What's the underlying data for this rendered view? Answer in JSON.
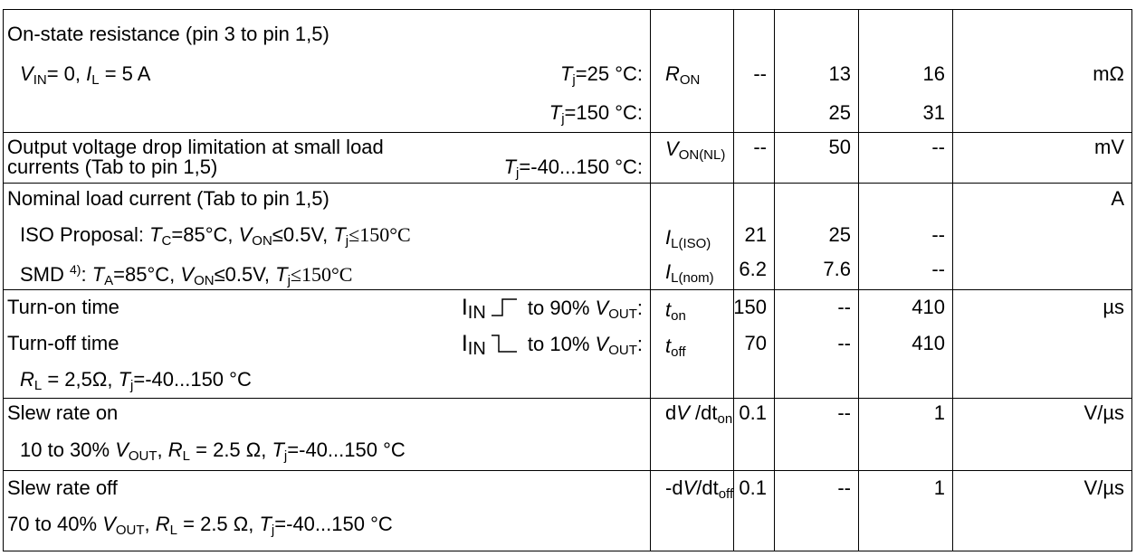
{
  "rows": [
    {
      "parameter": [
        "On-state resistance (pin 3 to pin 1,5)"
      ],
      "condition": [
        "V",
        "IN",
        "= 0, ",
        "I",
        "L",
        " = 5 A"
      ],
      "temperatures": [
        [
          "T",
          "j",
          "=25 °C:"
        ],
        [
          "T",
          "j",
          "=150 °C:"
        ]
      ],
      "symbol": [
        "R",
        "ON"
      ],
      "min": "--",
      "typ": [
        13,
        25
      ],
      "max": [
        16,
        31
      ],
      "unit": "mΩ"
    },
    {
      "parameter": [
        "Output voltage drop limitation at small load",
        "currents (Tab to pin 1,5)"
      ],
      "temperatures": [
        [
          "T",
          "j",
          "=-40...150 °C:"
        ]
      ],
      "symbol": [
        "V",
        "ON(NL)"
      ],
      "min": "--",
      "typ": 50,
      "max": "--",
      "unit": "mV"
    },
    {
      "parameter": [
        "Nominal load current  (Tab to pin 1,5)"
      ],
      "conditions": [
        [
          "ISO Proposal: ",
          "T",
          "C",
          "=85°C, ",
          "V",
          "ON",
          "≤0.5V, ",
          "T",
          "j",
          "≤150°C"
        ],
        [
          "SMD ",
          "4)",
          ": ",
          "T",
          "A",
          "=85°C, ",
          "V",
          "ON",
          "≤0.5V, ",
          "T",
          "j",
          "≤150°C"
        ]
      ],
      "symbols": [
        [
          "I",
          "L(ISO)"
        ],
        [
          "I",
          "L(nom)"
        ]
      ],
      "min": [
        21,
        6.2
      ],
      "typ": [
        25,
        7.6
      ],
      "max": [
        "--",
        "--"
      ],
      "unit": "A"
    },
    {
      "parameter": [
        "Turn-on time",
        "Turn-off time"
      ],
      "conditions": [
        [
          "I",
          "IN",
          " to  90% ",
          "V",
          "OUT",
          ":"
        ],
        [
          "I",
          "IN",
          " to 10% ",
          "V",
          "OUT",
          ":"
        ]
      ],
      "footnote_condition": [
        "R",
        "L",
        " = 2,5Ω, ",
        "T",
        "j",
        "=-40...150 °C"
      ],
      "symbols": [
        [
          "t",
          "on"
        ],
        [
          "t",
          "off"
        ]
      ],
      "min": [
        150,
        70
      ],
      "typ": [
        "--",
        "--"
      ],
      "max": [
        410,
        410
      ],
      "unit": "µs"
    },
    {
      "parameter": "Slew rate on",
      "condition": [
        "10 to 30% ",
        "V",
        "OUT",
        ", ",
        "R",
        "L",
        " = 2.5 Ω, ",
        "T",
        "j",
        "=-40...150 °C"
      ],
      "symbol": [
        "d",
        "V",
        " /dt",
        "on"
      ],
      "min": 0.1,
      "typ": "--",
      "max": 1,
      "unit": "V/µs"
    },
    {
      "parameter": "Slew rate off",
      "condition": [
        "70 to 40% ",
        "V",
        "OUT",
        ", ",
        "R",
        "L",
        " = 2.5 Ω, ",
        "T",
        "j",
        "=-40...150 °C"
      ],
      "symbol": [
        "-d",
        "V",
        "/dt",
        "off"
      ],
      "min": 0.1,
      "typ": "--",
      "max": 1,
      "unit": "V/µs"
    }
  ]
}
